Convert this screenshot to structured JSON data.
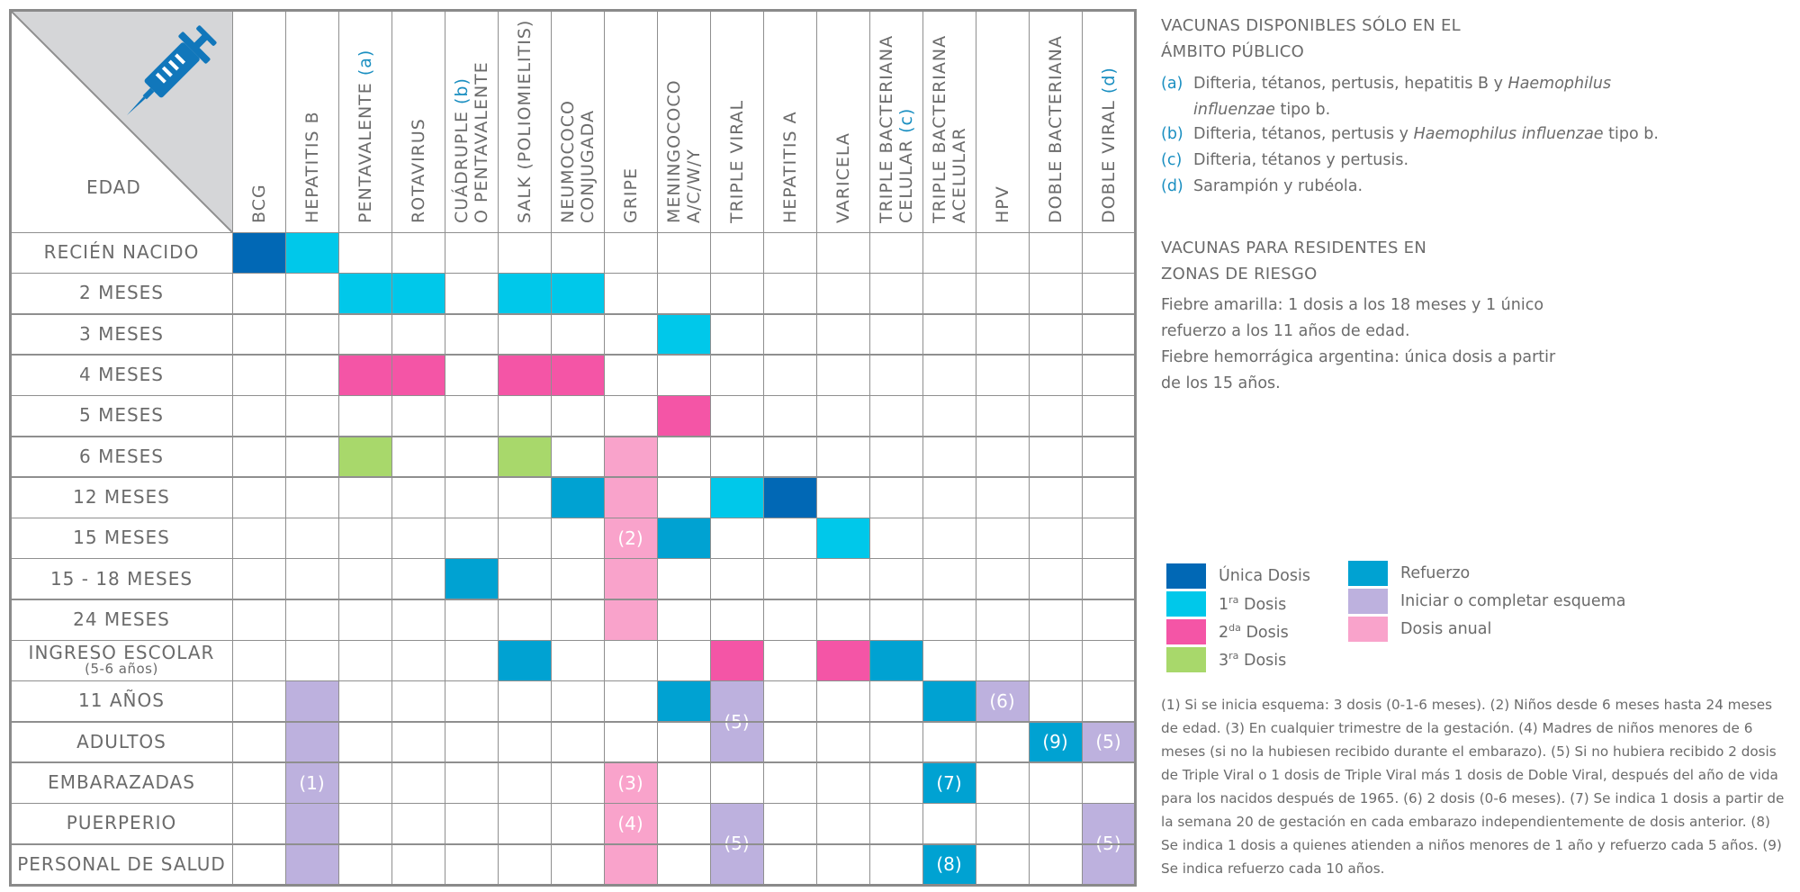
{
  "table": {
    "corner_label": "EDAD",
    "columns": [
      {
        "parts": [
          {
            "t": "BCG"
          }
        ]
      },
      {
        "parts": [
          {
            "t": "HEPATITIS B"
          }
        ]
      },
      {
        "parts": [
          {
            "t": "PENTAVALENTE "
          },
          {
            "t": "(a)",
            "ref": true
          }
        ]
      },
      {
        "parts": [
          {
            "t": "ROTAVIRUS"
          }
        ]
      },
      {
        "parts": [
          {
            "t": "CUÁDRUPLE "
          },
          {
            "t": "(b)",
            "ref": true
          }
        ],
        "line2": "O PENTAVALENTE"
      },
      {
        "parts": [
          {
            "t": "SALK (POLIOMIELITIS)"
          }
        ]
      },
      {
        "parts": [
          {
            "t": "NEUMOCOCO"
          }
        ],
        "line2": "CONJUGADA"
      },
      {
        "parts": [
          {
            "t": "GRIPE"
          }
        ]
      },
      {
        "parts": [
          {
            "t": "MENINGOCOCO"
          }
        ],
        "line2": "A/C/W/Y"
      },
      {
        "parts": [
          {
            "t": "TRIPLE VIRAL"
          }
        ]
      },
      {
        "parts": [
          {
            "t": "HEPATITIS A"
          }
        ]
      },
      {
        "parts": [
          {
            "t": "VARICELA"
          }
        ]
      },
      {
        "parts": [
          {
            "t": "TRIPLE BACTERIANA"
          }
        ],
        "line2": "CELULAR (c)"
      },
      {
        "parts": [
          {
            "t": "TRIPLE BACTERIANA"
          }
        ],
        "line2": "ACELULAR"
      },
      {
        "parts": [
          {
            "t": "HPV"
          }
        ]
      },
      {
        "parts": [
          {
            "t": "DOBLE BACTERIANA"
          }
        ]
      },
      {
        "parts": [
          {
            "t": "DOBLE VIRAL "
          },
          {
            "t": "(d)",
            "ref": true
          }
        ]
      }
    ],
    "rows": [
      {
        "label": "RECIÉN NACIDO"
      },
      {
        "label": "2 MESES"
      },
      {
        "label": "3 MESES"
      },
      {
        "label": "4 MESES"
      },
      {
        "label": "5 MESES"
      },
      {
        "label": "6 MESES"
      },
      {
        "label": "12 MESES"
      },
      {
        "label": "15 MESES"
      },
      {
        "label": "15 - 18 MESES"
      },
      {
        "label": "24 MESES"
      },
      {
        "label": "INGRESO ESCOLAR",
        "sub": "(5-6 años)"
      },
      {
        "label": "11 AÑOS"
      },
      {
        "label": "ADULTOS"
      },
      {
        "label": "EMBARAZADAS"
      },
      {
        "label": "PUERPERIO"
      },
      {
        "label": "PERSONAL DE SALUD"
      }
    ],
    "cells": [
      {
        "r": 0,
        "c": 0,
        "type": "unica"
      },
      {
        "r": 0,
        "c": 1,
        "type": "d1"
      },
      {
        "r": 1,
        "c": 2,
        "type": "d1"
      },
      {
        "r": 1,
        "c": 3,
        "type": "d1"
      },
      {
        "r": 1,
        "c": 5,
        "type": "d1"
      },
      {
        "r": 1,
        "c": 6,
        "type": "d1"
      },
      {
        "r": 2,
        "c": 8,
        "type": "d1"
      },
      {
        "r": 3,
        "c": 2,
        "type": "d2"
      },
      {
        "r": 3,
        "c": 3,
        "type": "d2"
      },
      {
        "r": 3,
        "c": 5,
        "type": "d2"
      },
      {
        "r": 3,
        "c": 6,
        "type": "d2"
      },
      {
        "r": 4,
        "c": 8,
        "type": "d2"
      },
      {
        "r": 5,
        "c": 2,
        "type": "d3"
      },
      {
        "r": 5,
        "c": 5,
        "type": "d3"
      },
      {
        "r": 5,
        "c": 7,
        "rs": 5,
        "type": "anual",
        "label": "(2)"
      },
      {
        "r": 6,
        "c": 6,
        "type": "ref"
      },
      {
        "r": 6,
        "c": 9,
        "type": "d1"
      },
      {
        "r": 6,
        "c": 10,
        "type": "unica"
      },
      {
        "r": 7,
        "c": 8,
        "type": "ref"
      },
      {
        "r": 7,
        "c": 11,
        "type": "d1"
      },
      {
        "r": 8,
        "c": 4,
        "type": "ref"
      },
      {
        "r": 10,
        "c": 5,
        "type": "ref"
      },
      {
        "r": 10,
        "c": 9,
        "type": "d2"
      },
      {
        "r": 10,
        "c": 11,
        "type": "d2"
      },
      {
        "r": 10,
        "c": 12,
        "type": "ref"
      },
      {
        "r": 11,
        "c": 1,
        "rs": 5,
        "type": "inic",
        "label": "(1)"
      },
      {
        "r": 11,
        "c": 8,
        "type": "ref"
      },
      {
        "r": 11,
        "c": 9,
        "rs": 2,
        "type": "inic",
        "label": "(5)"
      },
      {
        "r": 11,
        "c": 13,
        "type": "ref"
      },
      {
        "r": 11,
        "c": 14,
        "type": "inic",
        "label": "(6)"
      },
      {
        "r": 12,
        "c": 15,
        "type": "ref",
        "label": "(9)"
      },
      {
        "r": 12,
        "c": 16,
        "type": "inic",
        "label": "(5)"
      },
      {
        "r": 13,
        "c": 7,
        "type": "anual",
        "label": "(3)"
      },
      {
        "r": 13,
        "c": 13,
        "type": "ref",
        "label": "(7)"
      },
      {
        "r": 14,
        "c": 7,
        "type": "anual",
        "label": "(4)"
      },
      {
        "r": 14,
        "c": 9,
        "rs": 2,
        "type": "inic",
        "label": "(5)"
      },
      {
        "r": 14,
        "c": 16,
        "rs": 2,
        "type": "inic",
        "label": "(5)"
      },
      {
        "r": 15,
        "c": 7,
        "type": "anual"
      },
      {
        "r": 15,
        "c": 13,
        "type": "ref",
        "label": "(8)"
      }
    ]
  },
  "public_section": {
    "title_line1": "VACUNAS DISPONIBLES SÓLO EN EL",
    "title_line2": "ÁMBITO PÚBLICO",
    "notes": [
      {
        "key": "(a)",
        "line1_pre": "Difteria, tétanos, pertusis, hepatitis B y ",
        "line1_italic": "Haemophilus",
        "line2_italic": "influenzae",
        "line2_post": " tipo b."
      },
      {
        "key": "(b)",
        "pre": "Difteria, tétanos, pertusis y ",
        "italic": "Haemophilus influenzae",
        "post": " tipo b."
      },
      {
        "key": "(c)",
        "text": "Difteria, tétanos y pertusis."
      },
      {
        "key": "(d)",
        "text": "Sarampión y rubéola."
      }
    ]
  },
  "risk_section": {
    "title_line1": "VACUNAS PARA RESIDENTES EN",
    "title_line2": "ZONAS DE RIESGO",
    "lines": [
      "Fiebre amarilla: 1 dosis a los  18 meses y 1 único",
      "refuerzo a los 11 años de edad.",
      "Fiebre hemorrágica argentina: única dosis a partir",
      "de los 15 años."
    ]
  },
  "legend": {
    "unica": "Única Dosis",
    "d1_num": "1",
    "d1_sup": "ra",
    "d1_text": " Dosis",
    "d2_num": "2",
    "d2_sup": "da",
    "d2_text": " Dosis",
    "d3_num": "3",
    "d3_sup": "ra",
    "d3_text": " Dosis",
    "refuerzo": "Refuerzo",
    "inic": "Iniciar o completar esquema",
    "anual": "Dosis anual"
  },
  "colors": {
    "unica": "#0168b5",
    "d1": "#00c8ea",
    "d2": "#f455a6",
    "d3": "#a8d86b",
    "ref": "#00a2d2",
    "inic": "#bdb1de",
    "anual": "#f9a3cb",
    "ref_text": "#1b8fc1",
    "grid": "#8f8f8f"
  },
  "footnote_lines": [
    "(1) Si se inicia esquema: 3 dosis (0-1-6 meses). (2) Niños desde 6 meses hasta 24 meses",
    "de edad. (3) En cualquier trimestre de la gestación. (4) Madres de niños menores de 6",
    "meses (si no la hubiesen recibido durante el embarazo). (5) Si no hubiera recibido 2 dosis",
    "de Triple Viral o 1 dosis de Triple Viral más 1 dosis de Doble Viral, después del año de vida",
    "para los nacidos después de 1965. (6) 2 dosis (0-6 meses). (7) Se indica 1 dosis a partir de",
    "la semana 20 de gestación en cada embarazo independientemente de dosis anterior. (8)",
    "Se indica 1 dosis a quienes atienden a niños menores de 1 año y refuerzo cada 5 años. (9)",
    "Se indica refuerzo cada 10 años."
  ]
}
